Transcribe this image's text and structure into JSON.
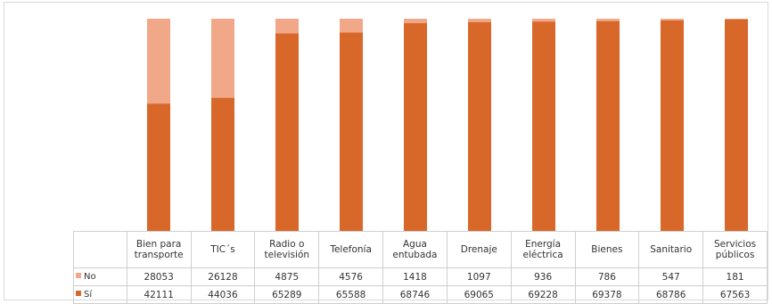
{
  "colors": {
    "si": "#d8682a",
    "no": "#f1a889"
  },
  "chart_data": {
    "type": "bar",
    "stacked": true,
    "normalized": true,
    "categories": [
      "Bien para transporte",
      "TIC´s",
      "Radio o televisión",
      "Telefonía",
      "Agua entubada",
      "Drenaje",
      "Energía eléctrica",
      "Bienes",
      "Sanitario",
      "Servicios públicos"
    ],
    "series": [
      {
        "name": "No",
        "values": [
          28053,
          26128,
          4875,
          4576,
          1418,
          1097,
          936,
          786,
          547,
          181
        ]
      },
      {
        "name": "Sí",
        "values": [
          42111,
          44036,
          65289,
          65588,
          68746,
          69065,
          69228,
          69378,
          68786,
          67563
        ]
      }
    ],
    "data_table": true,
    "legend": "data-table",
    "grid": false
  }
}
